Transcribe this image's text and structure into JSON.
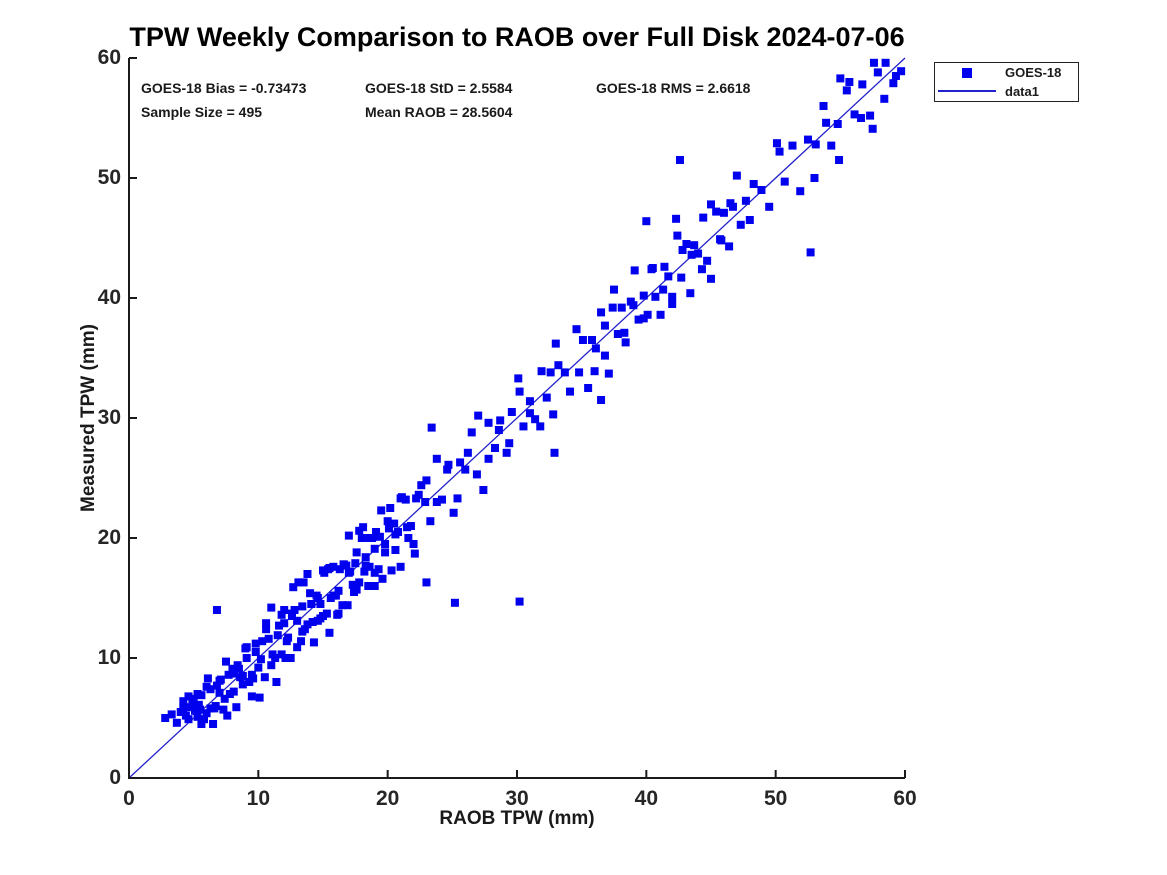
{
  "title": "TPW Weekly Comparison to RAOB over Full Disk 2024-07-06",
  "stats": {
    "bias": "GOES-18 Bias = -0.73473",
    "std": "GOES-18 StD = 2.5584",
    "rms": "GOES-18 RMS = 2.6618",
    "sample_size": "Sample Size = 495",
    "mean_raob": "Mean RAOB = 28.5604"
  },
  "legend": {
    "entries": [
      {
        "label": "GOES-18",
        "type": "marker"
      },
      {
        "label": "data1",
        "type": "line"
      }
    ]
  },
  "chart_data": {
    "type": "scatter",
    "title": "TPW Weekly Comparison to RAOB over Full Disk 2024-07-06",
    "xlabel": "RAOB TPW (mm)",
    "ylabel": "Measured TPW (mm)",
    "xlim": [
      0,
      60
    ],
    "ylim": [
      0,
      60
    ],
    "x_ticks": [
      0,
      10,
      20,
      30,
      40,
      50,
      60
    ],
    "y_ticks": [
      0,
      10,
      20,
      30,
      40,
      50,
      60
    ],
    "grid": false,
    "legend_position": "top-right-outside",
    "marker_color": "#0000EE",
    "line_color": "#2222CC",
    "axis_color": "#1a1a1a",
    "marker_shape": "square",
    "reference_line": {
      "name": "data1",
      "from": [
        0,
        0
      ],
      "to": [
        60,
        60
      ]
    },
    "series": [
      {
        "name": "GOES-18",
        "points": [
          [
            2.8,
            5.0
          ],
          [
            3.3,
            5.3
          ],
          [
            3.7,
            4.6
          ],
          [
            4.0,
            5.5
          ],
          [
            4.2,
            6.4
          ],
          [
            4.4,
            5.2
          ],
          [
            4.6,
            6.8
          ],
          [
            4.8,
            5.9
          ],
          [
            5.0,
            6.6
          ],
          [
            5.1,
            5.6
          ],
          [
            5.3,
            7.0
          ],
          [
            5.4,
            6.1
          ],
          [
            5.5,
            5.7
          ],
          [
            5.8,
            4.9
          ],
          [
            6.0,
            7.6
          ],
          [
            6.3,
            5.8
          ],
          [
            6.5,
            4.5
          ],
          [
            6.8,
            7.7
          ],
          [
            7.0,
            7.1
          ],
          [
            7.3,
            5.7
          ],
          [
            7.5,
            9.7
          ],
          [
            7.8,
            7.0
          ],
          [
            8.0,
            9.1
          ],
          [
            8.3,
            5.9
          ],
          [
            8.5,
            9.1
          ],
          [
            8.8,
            8.5
          ],
          [
            9.0,
            10.8
          ],
          [
            9.3,
            8.0
          ],
          [
            9.5,
            6.8
          ],
          [
            9.8,
            11.2
          ],
          [
            10.0,
            9.2
          ],
          [
            10.3,
            11.4
          ],
          [
            10.5,
            8.4
          ],
          [
            10.8,
            11.6
          ],
          [
            11.0,
            14.2
          ],
          [
            11.3,
            10.0
          ],
          [
            11.5,
            11.9
          ],
          [
            11.8,
            10.3
          ],
          [
            12.0,
            14.0
          ],
          [
            12.3,
            11.7
          ],
          [
            12.5,
            10.0
          ],
          [
            12.8,
            14.0
          ],
          [
            13.0,
            13.1
          ],
          [
            13.3,
            11.4
          ],
          [
            13.5,
            16.3
          ],
          [
            13.8,
            12.8
          ],
          [
            14.0,
            15.4
          ],
          [
            14.3,
            11.3
          ],
          [
            14.5,
            15.2
          ],
          [
            14.8,
            14.5
          ],
          [
            15.0,
            17.3
          ],
          [
            15.3,
            13.7
          ],
          [
            15.5,
            12.1
          ],
          [
            15.8,
            17.6
          ],
          [
            16.0,
            15.2
          ],
          [
            16.3,
            17.4
          ],
          [
            16.5,
            14.4
          ],
          [
            16.8,
            17.7
          ],
          [
            17.0,
            20.2
          ],
          [
            17.3,
            16.1
          ],
          [
            17.5,
            17.9
          ],
          [
            17.8,
            16.3
          ],
          [
            18.0,
            20.0
          ],
          [
            18.3,
            17.7
          ],
          [
            18.5,
            16.0
          ],
          [
            18.8,
            20.0
          ],
          [
            19.0,
            19.1
          ],
          [
            19.3,
            17.4
          ],
          [
            19.5,
            22.3
          ],
          [
            19.8,
            18.8
          ],
          [
            20.0,
            21.4
          ],
          [
            20.3,
            17.3
          ],
          [
            20.5,
            21.2
          ],
          [
            20.8,
            20.5
          ],
          [
            21.0,
            23.3
          ],
          [
            5.6,
            4.5
          ],
          [
            6.1,
            8.3
          ],
          [
            6.6,
            5.8
          ],
          [
            7.1,
            8.2
          ],
          [
            7.6,
            5.2
          ],
          [
            8.1,
            8.7
          ],
          [
            8.6,
            8.4
          ],
          [
            9.1,
            10.9
          ],
          [
            9.6,
            8.3
          ],
          [
            10.1,
            6.7
          ],
          [
            10.6,
            12.4
          ],
          [
            11.1,
            10.3
          ],
          [
            11.6,
            12.7
          ],
          [
            12.1,
            10.0
          ],
          [
            12.6,
            13.5
          ],
          [
            13.1,
            16.3
          ],
          [
            13.6,
            12.4
          ],
          [
            14.1,
            14.5
          ],
          [
            14.6,
            13.1
          ],
          [
            15.1,
            17.1
          ],
          [
            15.6,
            15.0
          ],
          [
            16.1,
            13.6
          ],
          [
            16.6,
            17.8
          ],
          [
            17.1,
            17.2
          ],
          [
            17.6,
            15.7
          ],
          [
            18.1,
            20.9
          ],
          [
            18.6,
            17.6
          ],
          [
            19.1,
            20.5
          ],
          [
            19.6,
            16.6
          ],
          [
            20.1,
            20.8
          ],
          [
            20.6,
            20.3
          ],
          [
            21.1,
            23.4
          ],
          [
            21.6,
            20.0
          ],
          [
            22.1,
            18.7
          ],
          [
            22.6,
            24.4
          ],
          [
            10.2,
            9.9
          ],
          [
            10.6,
            12.9
          ],
          [
            11.0,
            9.4
          ],
          [
            11.4,
            8.0
          ],
          [
            11.8,
            13.6
          ],
          [
            12.2,
            11.4
          ],
          [
            12.6,
            13.7
          ],
          [
            13.0,
            10.9
          ],
          [
            13.4,
            14.3
          ],
          [
            13.8,
            17.0
          ],
          [
            14.2,
            13.0
          ],
          [
            14.6,
            15.0
          ],
          [
            15.0,
            13.5
          ],
          [
            15.4,
            17.4
          ],
          [
            15.8,
            15.2
          ],
          [
            16.2,
            13.7
          ],
          [
            16.6,
            17.8
          ],
          [
            17.0,
            17.1
          ],
          [
            17.4,
            15.5
          ],
          [
            17.8,
            20.6
          ],
          [
            18.2,
            17.2
          ],
          [
            18.6,
            20.0
          ],
          [
            19.0,
            16.0
          ],
          [
            19.4,
            20.1
          ],
          [
            19.8,
            19.5
          ],
          [
            20.2,
            22.5
          ],
          [
            20.6,
            19.0
          ],
          [
            21.0,
            17.6
          ],
          [
            21.4,
            23.2
          ],
          [
            21.8,
            21.0
          ],
          [
            22.2,
            23.3
          ],
          [
            21.5,
            20.9
          ],
          [
            22.0,
            19.5
          ],
          [
            22.4,
            23.6
          ],
          [
            22.9,
            23.0
          ],
          [
            23.3,
            21.4
          ],
          [
            23.8,
            26.6
          ],
          [
            24.2,
            23.2
          ],
          [
            24.7,
            26.1
          ],
          [
            25.1,
            22.1
          ],
          [
            25.6,
            26.3
          ],
          [
            26.0,
            25.7
          ],
          [
            26.5,
            28.8
          ],
          [
            26.9,
            25.3
          ],
          [
            27.4,
            24.0
          ],
          [
            27.8,
            29.6
          ],
          [
            28.3,
            27.5
          ],
          [
            28.7,
            29.8
          ],
          [
            29.2,
            27.1
          ],
          [
            29.6,
            30.5
          ],
          [
            30.1,
            33.3
          ],
          [
            30.5,
            29.3
          ],
          [
            31.0,
            31.4
          ],
          [
            31.4,
            29.9
          ],
          [
            31.9,
            33.9
          ],
          [
            32.3,
            31.7
          ],
          [
            32.8,
            30.3
          ],
          [
            33.2,
            34.4
          ],
          [
            33.7,
            33.8
          ],
          [
            34.1,
            32.2
          ],
          [
            34.6,
            37.4
          ],
          [
            23.0,
            24.8
          ],
          [
            23.8,
            23.0
          ],
          [
            24.6,
            25.7
          ],
          [
            25.4,
            23.3
          ],
          [
            26.2,
            27.1
          ],
          [
            27.0,
            30.2
          ],
          [
            27.8,
            26.6
          ],
          [
            28.6,
            29.0
          ],
          [
            29.4,
            27.9
          ],
          [
            30.2,
            32.2
          ],
          [
            31.0,
            30.4
          ],
          [
            31.8,
            29.3
          ],
          [
            32.6,
            33.8
          ],
          [
            34.8,
            33.8
          ],
          [
            35.1,
            36.5
          ],
          [
            35.5,
            32.5
          ],
          [
            35.8,
            36.5
          ],
          [
            36.1,
            35.8
          ],
          [
            36.5,
            38.8
          ],
          [
            36.8,
            35.2
          ],
          [
            37.1,
            33.7
          ],
          [
            37.4,
            39.2
          ],
          [
            37.8,
            37.0
          ],
          [
            38.1,
            39.2
          ],
          [
            38.4,
            36.3
          ],
          [
            38.8,
            39.7
          ],
          [
            39.1,
            42.3
          ],
          [
            39.4,
            38.2
          ],
          [
            39.8,
            40.2
          ],
          [
            40.1,
            38.6
          ],
          [
            40.4,
            42.4
          ],
          [
            40.7,
            40.1
          ],
          [
            41.1,
            38.6
          ],
          [
            41.4,
            42.6
          ],
          [
            41.7,
            41.8
          ],
          [
            42.0,
            40.1
          ],
          [
            42.4,
            45.2
          ],
          [
            42.7,
            41.7
          ],
          [
            43.1,
            44.5
          ],
          [
            43.4,
            40.4
          ],
          [
            43.7,
            44.4
          ],
          [
            44.0,
            43.7
          ],
          [
            44.4,
            46.7
          ],
          [
            44.7,
            43.1
          ],
          [
            45.0,
            41.6
          ],
          [
            45.4,
            47.2
          ],
          [
            45.7,
            44.9
          ],
          [
            46.0,
            47.1
          ],
          [
            46.4,
            44.3
          ],
          [
            46.7,
            47.6
          ],
          [
            47.0,
            50.2
          ],
          [
            47.3,
            46.1
          ],
          [
            47.7,
            48.1
          ],
          [
            48.0,
            46.5
          ],
          [
            36.0,
            33.9
          ],
          [
            36.8,
            37.7
          ],
          [
            37.5,
            40.7
          ],
          [
            38.3,
            37.1
          ],
          [
            39.0,
            39.4
          ],
          [
            39.8,
            38.3
          ],
          [
            40.5,
            42.5
          ],
          [
            41.3,
            40.7
          ],
          [
            42.0,
            39.5
          ],
          [
            42.8,
            44.0
          ],
          [
            43.5,
            43.6
          ],
          [
            44.3,
            42.4
          ],
          [
            45.0,
            47.8
          ],
          [
            45.8,
            44.8
          ],
          [
            46.5,
            47.9
          ],
          [
            48.3,
            49.5
          ],
          [
            48.9,
            49.0
          ],
          [
            49.5,
            47.6
          ],
          [
            50.1,
            52.9
          ],
          [
            50.7,
            49.7
          ],
          [
            51.3,
            52.7
          ],
          [
            51.9,
            48.9
          ],
          [
            52.5,
            53.2
          ],
          [
            53.1,
            52.8
          ],
          [
            53.7,
            56.0
          ],
          [
            54.3,
            52.7
          ],
          [
            54.9,
            51.5
          ],
          [
            55.5,
            57.3
          ],
          [
            56.1,
            55.3
          ],
          [
            56.7,
            57.8
          ],
          [
            57.3,
            55.2
          ],
          [
            57.9,
            58.8
          ],
          [
            58.5,
            59.6
          ],
          [
            59.1,
            57.9
          ],
          [
            59.7,
            58.9
          ],
          [
            53.0,
            50.0
          ],
          [
            53.9,
            54.6
          ],
          [
            54.8,
            54.5
          ],
          [
            55.7,
            58.0
          ],
          [
            56.6,
            55.0
          ],
          [
            57.5,
            54.1
          ],
          [
            58.4,
            56.6
          ],
          [
            59.3,
            58.5
          ],
          [
            4.2,
            5.8
          ],
          [
            4.6,
            4.9
          ],
          [
            4.9,
            6.3
          ],
          [
            5.3,
            5.1
          ],
          [
            5.6,
            6.9
          ],
          [
            6.0,
            5.4
          ],
          [
            6.3,
            7.4
          ],
          [
            6.7,
            6.0
          ],
          [
            7.0,
            8.1
          ],
          [
            7.4,
            6.6
          ],
          [
            7.7,
            8.6
          ],
          [
            8.1,
            7.2
          ],
          [
            8.4,
            9.4
          ],
          [
            8.8,
            7.8
          ],
          [
            9.1,
            10.0
          ],
          [
            9.5,
            8.6
          ],
          [
            9.8,
            10.5
          ],
          [
            12.0,
            12.9
          ],
          [
            12.7,
            15.9
          ],
          [
            13.4,
            12.2
          ],
          [
            14.1,
            14.5
          ],
          [
            14.8,
            13.3
          ],
          [
            15.5,
            17.5
          ],
          [
            16.2,
            15.6
          ],
          [
            16.9,
            14.4
          ],
          [
            17.6,
            18.8
          ],
          [
            18.3,
            18.4
          ],
          [
            19.0,
            17.1
          ],
          [
            6.8,
            14.0
          ],
          [
            23.0,
            16.3
          ],
          [
            23.4,
            29.2
          ],
          [
            25.2,
            14.6
          ],
          [
            30.2,
            14.7
          ],
          [
            32.9,
            27.1
          ],
          [
            42.6,
            51.5
          ],
          [
            52.7,
            43.8
          ],
          [
            36.5,
            31.5
          ],
          [
            40.0,
            46.4
          ],
          [
            42.3,
            46.6
          ],
          [
            33.0,
            36.2
          ],
          [
            57.6,
            59.6
          ],
          [
            55.0,
            58.3
          ],
          [
            50.3,
            52.2
          ]
        ]
      }
    ]
  }
}
